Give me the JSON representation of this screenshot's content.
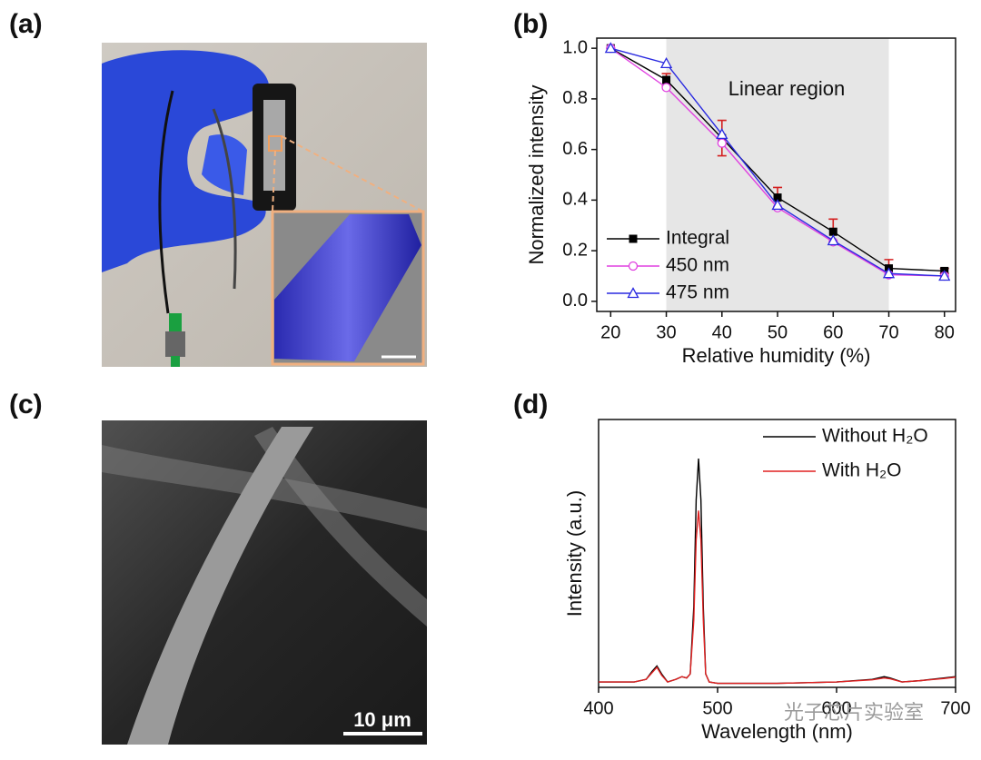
{
  "panel_labels": [
    "(a)",
    "(b)",
    "(c)",
    "(d)"
  ],
  "scale_bar": "10 μm",
  "watermark": "光子芯片实验室",
  "chart_data": [
    {
      "type": "line",
      "x_label": "Relative humidity (%)",
      "y_label": "Normalized intensity",
      "x": [
        20,
        30,
        40,
        50,
        60,
        70,
        80
      ],
      "series": [
        {
          "name": "Integral",
          "color": "#000000",
          "marker": "square",
          "values": [
            1.0,
            0.875,
            0.645,
            0.41,
            0.275,
            0.13,
            0.12
          ],
          "errors": [
            0,
            0.025,
            0.07,
            0.04,
            0.05,
            0.035,
            0.01
          ],
          "error_color": "#d42020"
        },
        {
          "name": "450 nm",
          "color": "#e040e0",
          "marker": "circle",
          "values": [
            1.0,
            0.845,
            0.625,
            0.37,
            0.235,
            0.105,
            0.1
          ]
        },
        {
          "name": "475 nm",
          "color": "#2a2ae0",
          "marker": "triangle",
          "values": [
            1.0,
            0.94,
            0.66,
            0.38,
            0.24,
            0.11,
            0.1
          ]
        }
      ],
      "shade": [
        30,
        70
      ],
      "annotation": "Linear region",
      "xlim": [
        17.5,
        82
      ],
      "xticks": [
        20,
        30,
        40,
        50,
        60,
        70,
        80
      ],
      "ylim": [
        -0.04,
        1.04
      ],
      "yticks": [
        {
          "value": 0,
          "label": "0.0"
        },
        0.2,
        0.4,
        0.6,
        0.8,
        {
          "value": 1,
          "label": "1.0"
        }
      ],
      "grid": false,
      "legend": "lower left"
    },
    {
      "type": "line",
      "x_label": "Wavelength (nm)",
      "y_label": "Intensity (a.u.)",
      "x": [
        400,
        430,
        440,
        445,
        449,
        453,
        458,
        465,
        470,
        474,
        477,
        480,
        482,
        484,
        486,
        488,
        490,
        493,
        500,
        550,
        600,
        630,
        640,
        645,
        655,
        670,
        690,
        700
      ],
      "series": [
        {
          "name": "Without H₂O",
          "color": "#000000",
          "values": [
            0.02,
            0.02,
            0.03,
            0.06,
            0.08,
            0.05,
            0.02,
            0.03,
            0.04,
            0.035,
            0.05,
            0.3,
            0.7,
            0.854,
            0.7,
            0.3,
            0.05,
            0.02,
            0.015,
            0.015,
            0.02,
            0.03,
            0.04,
            0.035,
            0.02,
            0.025,
            0.035,
            0.04
          ]
        },
        {
          "name": "With H₂O",
          "color": "#e02020",
          "values": [
            0.02,
            0.02,
            0.03,
            0.055,
            0.075,
            0.045,
            0.02,
            0.03,
            0.04,
            0.035,
            0.05,
            0.25,
            0.55,
            0.66,
            0.55,
            0.25,
            0.05,
            0.02,
            0.015,
            0.015,
            0.02,
            0.028,
            0.035,
            0.032,
            0.02,
            0.025,
            0.033,
            0.038
          ]
        }
      ],
      "xlim": [
        400,
        700
      ],
      "xticks": [
        400,
        500,
        600,
        700
      ],
      "ylim": [
        0,
        1
      ],
      "yticks": [],
      "grid": false,
      "legend": "upper right"
    }
  ]
}
